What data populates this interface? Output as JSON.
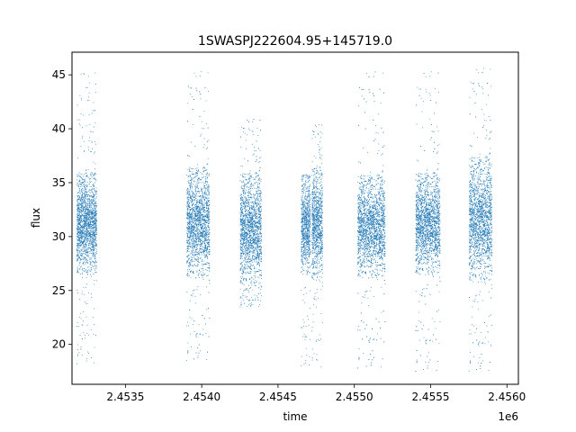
{
  "chart_data": {
    "type": "scatter",
    "title": "1SWASPJ222604.95+145719.0",
    "xlabel": "time",
    "ylabel": "flux",
    "x_offset_label": "1e6",
    "xlim": [
      2453150,
      2456075
    ],
    "ylim": [
      16.3,
      47.1
    ],
    "x_ticks": [
      2453500,
      2454000,
      2454500,
      2455000,
      2455500,
      2456000
    ],
    "x_tick_labels": [
      "2.4535",
      "2.4540",
      "2.4545",
      "2.4550",
      "2.4555",
      "2.4560"
    ],
    "y_ticks": [
      20,
      25,
      30,
      35,
      40,
      45
    ],
    "y_tick_labels": [
      "20",
      "25",
      "30",
      "35",
      "40",
      "45"
    ],
    "grid": false,
    "marker_color": "#1f77b4",
    "point_count_estimate": 16000,
    "series": [
      {
        "seasons": [
          {
            "x_start": 2453180,
            "x_end": 2453310,
            "flux_core": [
              26.5,
              36.0
            ],
            "flux_full": [
              18.2,
              45.5
            ]
          },
          {
            "x_start": 2453900,
            "x_end": 2454050,
            "flux_core": [
              26.2,
              36.5
            ],
            "flux_full": [
              18.5,
              45.5
            ]
          },
          {
            "x_start": 2454250,
            "x_end": 2454390,
            "flux_core": [
              25.5,
              36.0
            ],
            "flux_full": [
              23.5,
              41.0
            ]
          },
          {
            "x_start": 2454650,
            "x_end": 2454710,
            "flux_core": [
              26.5,
              35.5
            ],
            "flux_full": [
              18.0,
              35.8
            ]
          },
          {
            "x_start": 2454720,
            "x_end": 2454790,
            "flux_core": [
              26.0,
              36.5
            ],
            "flux_full": [
              17.8,
              40.5
            ]
          },
          {
            "x_start": 2455020,
            "x_end": 2455200,
            "flux_core": [
              26.2,
              35.8
            ],
            "flux_full": [
              17.8,
              45.5
            ]
          },
          {
            "x_start": 2455400,
            "x_end": 2455560,
            "flux_core": [
              26.5,
              36.0
            ],
            "flux_full": [
              17.5,
              45.5
            ]
          },
          {
            "x_start": 2455750,
            "x_end": 2455900,
            "flux_core": [
              25.8,
              37.5
            ],
            "flux_full": [
              17.5,
              45.8
            ]
          }
        ]
      }
    ]
  }
}
